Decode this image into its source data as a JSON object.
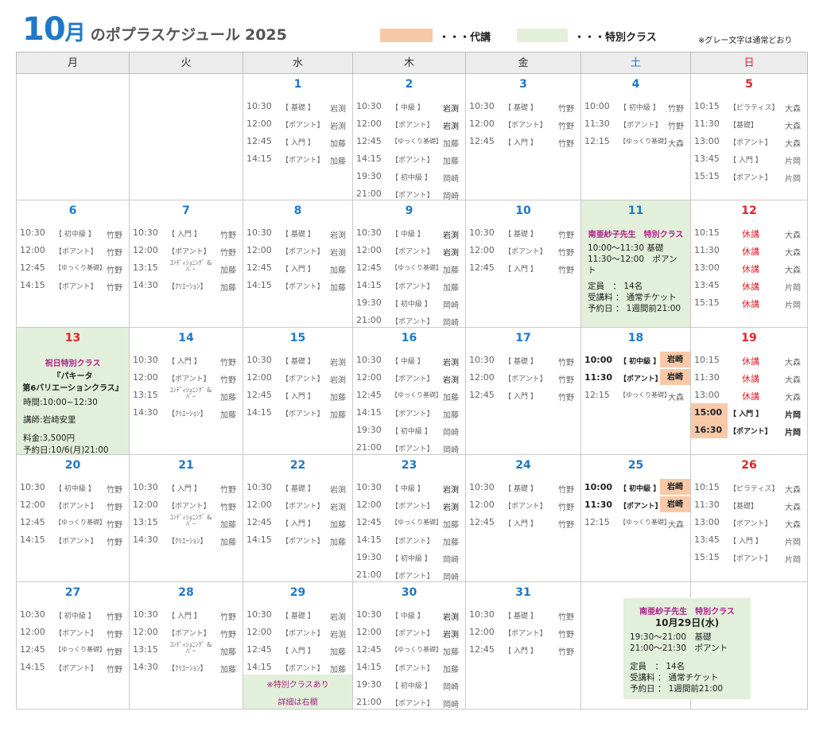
{
  "header": {
    "month_number": "10",
    "month_kanji": "月",
    "title_rest": "のポプラスケジュール",
    "year": "2025",
    "legend_substitute": "・・・代講",
    "legend_special": "・・・特別クラス",
    "note": "※グレー文字は通常どおり",
    "colors": {
      "substitute": "#f8c9a8",
      "special": "#e2efda",
      "accent": "#1f78c8",
      "holiday": "#e0242f"
    }
  },
  "weekdays": [
    "月",
    "火",
    "水",
    "木",
    "金",
    "土",
    "日"
  ],
  "weeks": [
    {
      "days": [
        {
          "date": ""
        },
        {
          "date": ""
        },
        {
          "date": "1",
          "lessons": [
            [
              "10:30",
              "【 基礎 】",
              "岩渕"
            ],
            [
              "12:00",
              "【ポアント】",
              "岩渕"
            ],
            [
              "12:45",
              "【 入門 】",
              "加藤"
            ],
            [
              "14:15",
              "【ポアント】",
              "加藤"
            ]
          ]
        },
        {
          "date": "2",
          "lessons": [
            [
              "10:30",
              "【 中級 】",
              "岩渕"
            ],
            [
              "12:00",
              "【ポアント】",
              "岩渕"
            ],
            [
              "12:45",
              "【ゆっくり基礎】",
              "加藤"
            ],
            [
              "14:15",
              "【ポアント】",
              "加藤"
            ],
            [
              "19:30",
              "【 初中級 】",
              "岡崎"
            ],
            [
              "21:00",
              "【ポアント】",
              "岡崎"
            ]
          ]
        },
        {
          "date": "3",
          "lessons": [
            [
              "10:30",
              "【 基礎 】",
              "竹野"
            ],
            [
              "12:00",
              "【ポアント】",
              "竹野"
            ],
            [
              "12:45",
              "【 入門 】",
              "竹野"
            ]
          ]
        },
        {
          "date": "4",
          "lessons": [
            [
              "10:00",
              "【 初中級 】",
              "竹野"
            ],
            [
              "11:30",
              "【ポアント】",
              "竹野"
            ],
            [
              "12:15",
              "【ゆっくり基礎】",
              "大森"
            ]
          ]
        },
        {
          "date": "5",
          "lessons": [
            [
              "10:15",
              "【ピラティス】",
              "大森"
            ],
            [
              "11:30",
              "【基礎】",
              "大森"
            ],
            [
              "13:00",
              "【ポアント】",
              "大森"
            ],
            [
              "13:45",
              "【 入門 】",
              "片岡"
            ],
            [
              "15:15",
              "【ポアント】",
              "片岡"
            ]
          ]
        }
      ]
    },
    {
      "days": [
        {
          "date": "6",
          "lessons": [
            [
              "10:30",
              "【 初中級 】",
              "竹野"
            ],
            [
              "12:00",
              "【ポアント】",
              "竹野"
            ],
            [
              "12:45",
              "【ゆっくり基礎】",
              "竹野"
            ],
            [
              "14:15",
              "【ポアント】",
              "竹野"
            ]
          ]
        },
        {
          "date": "7",
          "lessons": [
            [
              "10:30",
              "【 入門 】",
              "竹野"
            ],
            [
              "12:00",
              "【ポアント】",
              "竹野"
            ],
            [
              "13:15",
              "ｺﾝﾃﾞｨｼｮﾆﾝｸﾞ &ﾊﾞｰ",
              "加藤"
            ],
            [
              "14:30",
              "【ｸﾘｴｰｼｮﾝ】",
              "加藤"
            ]
          ]
        },
        {
          "date": "8",
          "lessons": [
            [
              "10:30",
              "【 基礎 】",
              "岩渕"
            ],
            [
              "12:00",
              "【ポアント】",
              "岩渕"
            ],
            [
              "12:45",
              "【 入門 】",
              "加藤"
            ],
            [
              "14:15",
              "【ポアント】",
              "加藤"
            ]
          ]
        },
        {
          "date": "9",
          "lessons": [
            [
              "10:30",
              "【 中級 】",
              "岩渕"
            ],
            [
              "12:00",
              "【ポアント】",
              "岩渕"
            ],
            [
              "12:45",
              "【ゆっくり基礎】",
              "加藤"
            ],
            [
              "14:15",
              "【ポアント】",
              "加藤"
            ],
            [
              "19:30",
              "【 初中級 】",
              "岡崎"
            ],
            [
              "21:00",
              "【ポアント】",
              "岡崎"
            ]
          ]
        },
        {
          "date": "10",
          "lessons": [
            [
              "10:30",
              "【 基礎 】",
              "竹野"
            ],
            [
              "12:00",
              "【ポアント】",
              "竹野"
            ],
            [
              "12:45",
              "【 入門 】",
              "竹野"
            ]
          ]
        },
        {
          "date": "11",
          "special": {
            "title": "南亜紗子先生　特別クラス",
            "lines": [
              "10:00～11:30  基礎",
              "11:30～12:00　ポアン",
              "ト"
            ],
            "details": [
              "定員　：  14名",
              "受講料  ：  通常チケット",
              "予約日  ：  1週間前21:00"
            ]
          }
        },
        {
          "date": "12",
          "lessons": [
            [
              "10:15",
              "休講",
              "大森"
            ],
            [
              "11:30",
              "休講",
              "大森"
            ],
            [
              "13:00",
              "休講",
              "大森"
            ],
            [
              "13:45",
              "休講",
              "片岡"
            ],
            [
              "15:15",
              "休講",
              "片岡"
            ]
          ]
        }
      ]
    },
    {
      "days": [
        {
          "date": "13",
          "special": {
            "title": "祝日特別クラス",
            "lines": [
              "『パキータ",
              "第6バリエーションクラス』"
            ],
            "details": [
              "時間:10:00~12:30",
              "講師:岩崎安里",
              "料金:3,500円",
              "予約日:10/6(月)21:00"
            ]
          }
        },
        {
          "date": "14",
          "lessons": [
            [
              "10:30",
              "【 入門 】",
              "竹野"
            ],
            [
              "12:00",
              "【ポアント】",
              "竹野"
            ],
            [
              "13:15",
              "ｺﾝﾃﾞｨｼｮﾆﾝｸﾞ &ﾊﾞｰ",
              "加藤"
            ],
            [
              "14:30",
              "【ｸﾘｴｰｼｮﾝ】",
              "加藤"
            ]
          ]
        },
        {
          "date": "15",
          "lessons": [
            [
              "10:30",
              "【 基礎 】",
              "岩渕"
            ],
            [
              "12:00",
              "【ポアント】",
              "岩渕"
            ],
            [
              "12:45",
              "【 入門 】",
              "加藤"
            ],
            [
              "14:15",
              "【ポアント】",
              "加藤"
            ]
          ]
        },
        {
          "date": "16",
          "lessons": [
            [
              "10:30",
              "【 中級 】",
              "岩渕"
            ],
            [
              "12:00",
              "【ポアント】",
              "岩渕"
            ],
            [
              "12:45",
              "【ゆっくり基礎】",
              "加藤"
            ],
            [
              "14:15",
              "【ポアント】",
              "加藤"
            ],
            [
              "19:30",
              "【 初中級 】",
              "岡崎"
            ],
            [
              "21:00",
              "【ポアント】",
              "岡崎"
            ]
          ]
        },
        {
          "date": "17",
          "lessons": [
            [
              "10:30",
              "【 基礎 】",
              "竹野"
            ],
            [
              "12:00",
              "【ポアント】",
              "竹野"
            ],
            [
              "12:45",
              "【 入門 】",
              "竹野"
            ]
          ]
        },
        {
          "date": "18",
          "lessons": [
            [
              "10:00",
              "【 初中級 】",
              "岩崎"
            ],
            [
              "11:30",
              "【ポアント】",
              "岩崎"
            ],
            [
              "12:15",
              "【ゆっくり基礎】",
              "大森"
            ]
          ]
        },
        {
          "date": "19",
          "lessons": [
            [
              "10:15",
              "休講",
              "大森"
            ],
            [
              "11:30",
              "休講",
              "大森"
            ],
            [
              "13:00",
              "休講",
              "大森"
            ],
            [
              "15:00",
              "【 入門 】",
              "片岡"
            ],
            [
              "16:30",
              "【ポアント】",
              "片岡"
            ]
          ]
        }
      ]
    },
    {
      "days": [
        {
          "date": "20",
          "lessons": [
            [
              "10:30",
              "【 初中級 】",
              "竹野"
            ],
            [
              "12:00",
              "【ポアント】",
              "竹野"
            ],
            [
              "12:45",
              "【ゆっくり基礎】",
              "竹野"
            ],
            [
              "14:15",
              "【ポアント】",
              "竹野"
            ]
          ]
        },
        {
          "date": "21",
          "lessons": [
            [
              "10:30",
              "【 入門 】",
              "竹野"
            ],
            [
              "12:00",
              "【ポアント】",
              "竹野"
            ],
            [
              "13:15",
              "ｺﾝﾃﾞｨｼｮﾆﾝｸﾞ &ﾊﾞｰ",
              "加藤"
            ],
            [
              "14:30",
              "【ｸﾘｴｰｼｮﾝ】",
              "加藤"
            ]
          ]
        },
        {
          "date": "22",
          "lessons": [
            [
              "10:30",
              "【 基礎 】",
              "岩渕"
            ],
            [
              "12:00",
              "【ポアント】",
              "岩渕"
            ],
            [
              "12:45",
              "【 入門 】",
              "加藤"
            ],
            [
              "14:15",
              "【ポアント】",
              "加藤"
            ]
          ]
        },
        {
          "date": "23",
          "lessons": [
            [
              "10:30",
              "【 中級 】",
              "岩渕"
            ],
            [
              "12:00",
              "【ポアント】",
              "岩渕"
            ],
            [
              "12:45",
              "【ゆっくり基礎】",
              "加藤"
            ],
            [
              "14:15",
              "【ポアント】",
              "加藤"
            ],
            [
              "19:30",
              "【 初中級 】",
              "岡崎"
            ],
            [
              "21:00",
              "【ポアント】",
              "岡崎"
            ]
          ]
        },
        {
          "date": "24",
          "lessons": [
            [
              "10:30",
              "【 基礎 】",
              "竹野"
            ],
            [
              "12:00",
              "【ポアント】",
              "竹野"
            ],
            [
              "12:45",
              "【 入門 】",
              "竹野"
            ]
          ]
        },
        {
          "date": "25",
          "lessons": [
            [
              "10:00",
              "【 初中級 】",
              "岩崎"
            ],
            [
              "11:30",
              "【ポアント】",
              "岩崎"
            ],
            [
              "12:15",
              "【ゆっくり基礎】",
              "大森"
            ]
          ]
        },
        {
          "date": "26",
          "lessons": [
            [
              "10:15",
              "【ピラティス】",
              "大森"
            ],
            [
              "11:30",
              "【基礎】",
              "大森"
            ],
            [
              "13:00",
              "【ポアント】",
              "大森"
            ],
            [
              "13:45",
              "【 入門 】",
              "片岡"
            ],
            [
              "15:15",
              "【ポアント】",
              "片岡"
            ]
          ]
        }
      ]
    },
    {
      "days": [
        {
          "date": "27",
          "lessons": [
            [
              "10:30",
              "【 初中級 】",
              "竹野"
            ],
            [
              "12:00",
              "【ポアント】",
              "竹野"
            ],
            [
              "12:45",
              "【ゆっくり基礎】",
              "竹野"
            ],
            [
              "14:15",
              "【ポアント】",
              "竹野"
            ]
          ]
        },
        {
          "date": "28",
          "lessons": [
            [
              "10:30",
              "【 入門 】",
              "竹野"
            ],
            [
              "12:00",
              "【ポアント】",
              "竹野"
            ],
            [
              "13:15",
              "ｺﾝﾃﾞｨｼｮﾆﾝｸﾞ &ﾊﾞｰ",
              "加藤"
            ],
            [
              "14:30",
              "【ｸﾘｴｰｼｮﾝ】",
              "加藤"
            ]
          ]
        },
        {
          "date": "29",
          "lessons": [
            [
              "10:30",
              "【 基礎 】",
              "岩渕"
            ],
            [
              "12:00",
              "【ポアント】",
              "岩渕"
            ],
            [
              "12:45",
              "【 入門 】",
              "加藤"
            ],
            [
              "14:15",
              "【ポアント】",
              "加藤"
            ]
          ],
          "note": [
            "※特別クラスあり",
            "詳細は右欄"
          ]
        },
        {
          "date": "30",
          "lessons": [
            [
              "10:30",
              "【 中級 】",
              "岩渕"
            ],
            [
              "12:00",
              "【ポアント】",
              "岩渕"
            ],
            [
              "12:45",
              "【ゆっくり基礎】",
              "加藤"
            ],
            [
              "14:15",
              "【ポアント】",
              "加藤"
            ],
            [
              "19:30",
              "【 初中級 】",
              "岡崎"
            ],
            [
              "21:00",
              "【ポアント】",
              "岡崎"
            ]
          ]
        },
        {
          "date": "31",
          "lessons": [
            [
              "10:30",
              "【 基礎 】",
              "竹野"
            ],
            [
              "12:00",
              "【ポアント】",
              "竹野"
            ],
            [
              "12:45",
              "【 入門 】",
              "竹野"
            ]
          ]
        },
        {
          "date": ""
        },
        {
          "date": ""
        }
      ]
    }
  ],
  "special_box": {
    "title": "南亜紗子先生　特別クラス",
    "date": "10月29日(水)",
    "lines": [
      "19:30～21:00　基礎",
      "21:00～21:30　ポアント"
    ],
    "details": [
      "定員　：  14名",
      "受講料  ：  通常チケット",
      "予約日  ：  1週間前21:00"
    ]
  }
}
